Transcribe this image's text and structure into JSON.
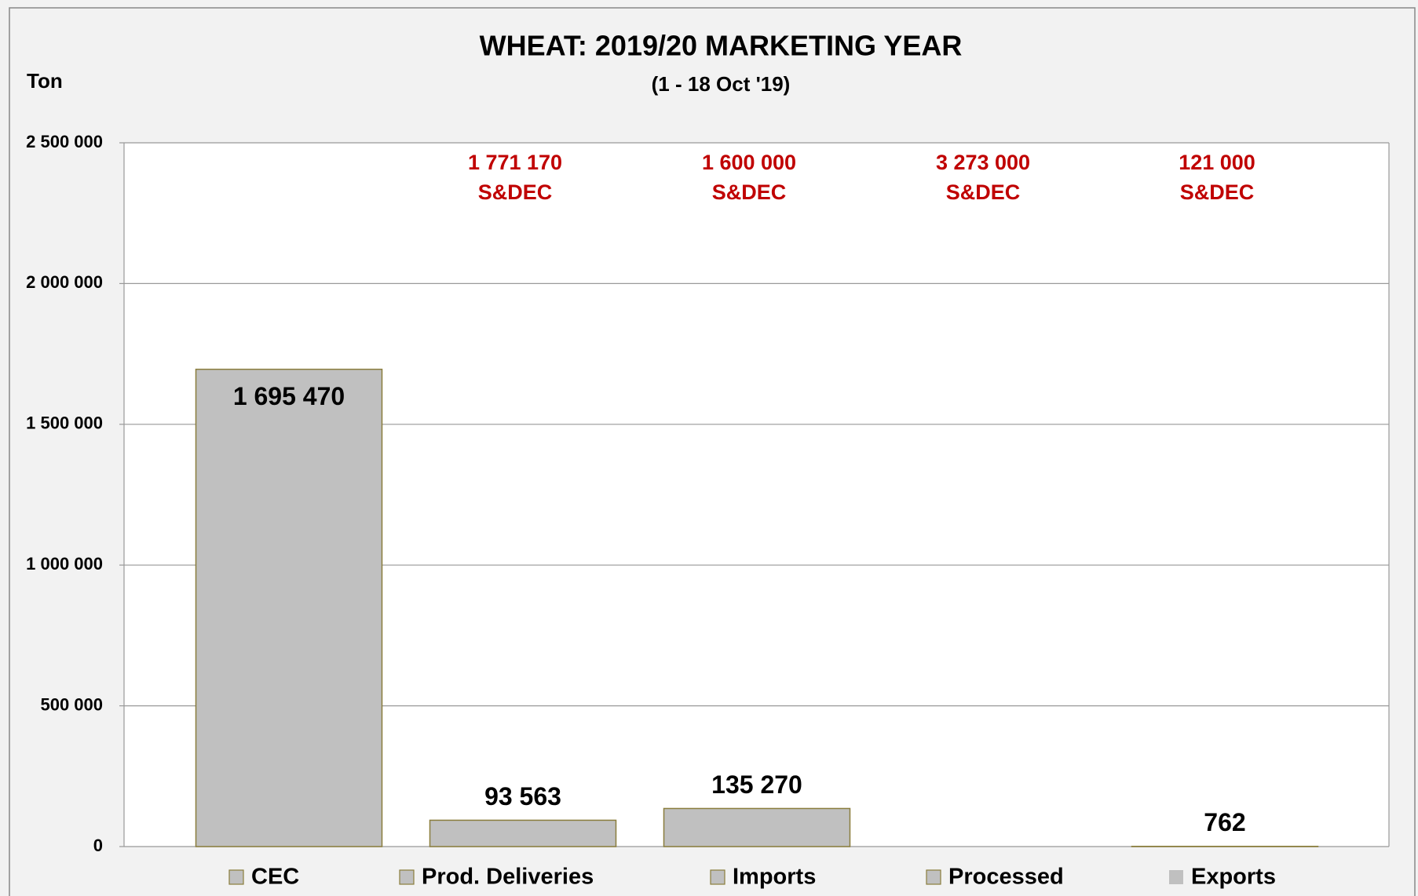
{
  "chart_data": {
    "type": "bar",
    "title": "WHEAT: 2019/20 MARKETING YEAR",
    "subtitle": "(1 - 18 Oct '19)",
    "ylabel": "Ton",
    "categories": [
      "CEC",
      "Prod. Deliveries",
      "Imports",
      "Processed",
      "Exports"
    ],
    "values": [
      1695470,
      93563,
      135270,
      0,
      762
    ],
    "value_labels": [
      "1 695 470",
      "93 563",
      "135 270",
      null,
      "762"
    ],
    "annotations": [
      null,
      [
        "1 771 170",
        "S&DEC"
      ],
      [
        "1 600 000",
        "S&DEC"
      ],
      [
        "3 273 000",
        "S&DEC"
      ],
      [
        "121 000",
        "S&DEC"
      ]
    ],
    "color": "#c0c0c0",
    "ylim": [
      0,
      2500000
    ],
    "yticks": [
      {
        "value": 0,
        "label": "0"
      },
      {
        "value": 500000,
        "label": "500 000"
      },
      {
        "value": 1000000,
        "label": "1 000 000"
      },
      {
        "value": 1500000,
        "label": "1 500 000"
      },
      {
        "value": 2000000,
        "label": "2 000 000"
      },
      {
        "value": 2500000,
        "label": "2 500 000"
      }
    ],
    "grid": true,
    "legend": "bottom"
  }
}
